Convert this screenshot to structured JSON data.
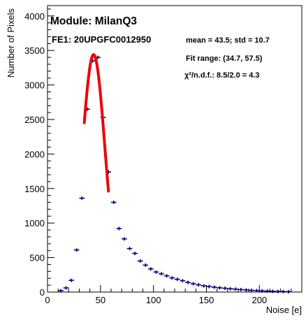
{
  "chart_data": {
    "type": "scatter",
    "title": "Module: MilanQ3",
    "subtitle": "FE1: 20UPGFC0012950",
    "xlabel": "Noise [e]",
    "ylabel": "Number of Pixels",
    "xlim": [
      0,
      240
    ],
    "ylim": [
      0,
      4150
    ],
    "x_ticks": [
      0,
      50,
      100,
      150,
      200
    ],
    "y_ticks": [
      0,
      500,
      1000,
      1500,
      2000,
      2500,
      3000,
      3500,
      4000
    ],
    "stats": {
      "mean_std": "mean = 43.5;    std = 10.7",
      "fit_range": "Fit range: (34.7, 57.5)",
      "chi2_prefix": "χ²/n.d.f.: 8.5/2.0 = 4.3"
    },
    "series": [
      {
        "x": [
          12.5,
          17.5,
          22.5,
          27.5,
          32.5,
          37.5,
          42.5,
          47.5,
          52.5,
          57.5,
          62.5,
          67.5,
          72.5,
          77.5,
          82.5,
          87.5,
          92.5,
          97.5,
          102.5,
          107.5,
          112.5,
          117.5,
          122.5,
          127.5,
          132.5,
          137.5,
          142.5,
          147.5,
          152.5,
          157.5,
          162.5,
          167.5,
          172.5,
          177.5,
          182.5,
          187.5,
          192.5,
          197.5,
          202.5,
          207.5,
          212.5,
          217.5,
          222.5,
          227.5
        ],
        "y": [
          20,
          60,
          170,
          610,
          1360,
          2650,
          3350,
          3400,
          2530,
          1740,
          1300,
          920,
          770,
          630,
          560,
          450,
          390,
          335,
          290,
          265,
          235,
          205,
          185,
          165,
          140,
          120,
          105,
          90,
          80,
          70,
          62,
          55,
          48,
          42,
          36,
          30,
          25,
          21,
          17,
          14,
          11,
          9,
          7,
          5
        ]
      }
    ],
    "fit": {
      "x_range": [
        34.7,
        57.5
      ],
      "mean": 43.5,
      "sigma": 10.7,
      "amplitude": 3440
    },
    "colors": {
      "points": "#000080",
      "fit": "#ee0000"
    }
  }
}
